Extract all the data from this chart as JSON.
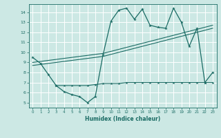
{
  "title": "",
  "xlabel": "Humidex (Indice chaleur)",
  "bg_color": "#cce8e4",
  "grid_color": "#ffffff",
  "line_color": "#1a6b64",
  "xlim": [
    -0.5,
    23.5
  ],
  "ylim": [
    4.5,
    14.8
  ],
  "xticks": [
    0,
    1,
    2,
    3,
    4,
    5,
    6,
    7,
    8,
    9,
    10,
    11,
    12,
    13,
    14,
    15,
    16,
    17,
    18,
    19,
    20,
    21,
    22,
    23
  ],
  "yticks": [
    5,
    6,
    7,
    8,
    9,
    10,
    11,
    12,
    13,
    14
  ],
  "series1_x": [
    0,
    1,
    2,
    3,
    4,
    5,
    6,
    7,
    8,
    9,
    10,
    11,
    12,
    13,
    14,
    15,
    16,
    17,
    18,
    19,
    20,
    21,
    22,
    23
  ],
  "series1_y": [
    9.5,
    8.9,
    7.8,
    6.7,
    6.1,
    5.8,
    5.6,
    5.0,
    5.6,
    9.8,
    13.1,
    14.2,
    14.4,
    13.3,
    14.3,
    12.7,
    12.5,
    12.4,
    14.4,
    13.0,
    10.6,
    12.4,
    7.0,
    8.0
  ],
  "series2_x": [
    0,
    1,
    2,
    3,
    4,
    5,
    6,
    7,
    8,
    9,
    10,
    11,
    12,
    13,
    14,
    15,
    16,
    17,
    18,
    19,
    20,
    21,
    22,
    23
  ],
  "series2_y": [
    8.7,
    8.8,
    8.9,
    9.0,
    9.1,
    9.2,
    9.3,
    9.4,
    9.5,
    9.6,
    9.8,
    10.0,
    10.2,
    10.4,
    10.6,
    10.8,
    11.0,
    11.2,
    11.4,
    11.6,
    11.8,
    12.0,
    12.2,
    12.4
  ],
  "series3_x": [
    0,
    1,
    2,
    3,
    4,
    5,
    6,
    7,
    8,
    9,
    10,
    11,
    12,
    13,
    14,
    15,
    16,
    17,
    18,
    19,
    20,
    21,
    22,
    23
  ],
  "series3_y": [
    9.0,
    9.1,
    9.2,
    9.3,
    9.4,
    9.5,
    9.6,
    9.7,
    9.8,
    9.9,
    10.1,
    10.3,
    10.5,
    10.7,
    10.9,
    11.1,
    11.3,
    11.5,
    11.7,
    11.9,
    12.1,
    12.3,
    12.5,
    12.7
  ],
  "series4_x": [
    3,
    4,
    5,
    6,
    7,
    8,
    9,
    10,
    11,
    12,
    13,
    14,
    15,
    16,
    17,
    18,
    19,
    20,
    21,
    22,
    23
  ],
  "series4_y": [
    6.7,
    6.7,
    6.7,
    6.7,
    6.7,
    6.8,
    6.9,
    6.9,
    6.9,
    7.0,
    7.0,
    7.0,
    7.0,
    7.0,
    7.0,
    7.0,
    7.0,
    7.0,
    7.0,
    7.0,
    7.0
  ]
}
